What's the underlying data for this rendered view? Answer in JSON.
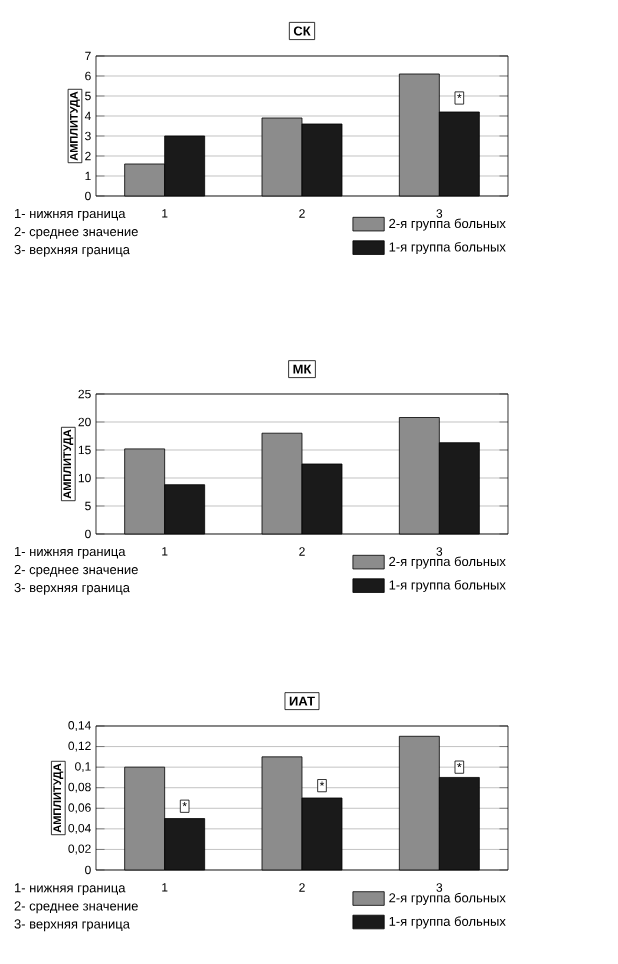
{
  "chart_data": [
    {
      "type": "bar",
      "title": "СК",
      "ylabel": "АМПЛИТУДА",
      "categories": [
        "1",
        "2",
        "3"
      ],
      "series": [
        {
          "name": "2-я группа больных",
          "color": "#8c8c8c",
          "values": [
            1.6,
            3.9,
            6.1
          ]
        },
        {
          "name": "1-я группа больных",
          "color": "#1a1a1a",
          "values": [
            3.0,
            3.6,
            4.2
          ]
        }
      ],
      "ylim": [
        0,
        7
      ],
      "yticks": [
        0,
        1,
        2,
        3,
        4,
        5,
        6,
        7
      ],
      "grid": "y",
      "legend": "bottom right",
      "annotations": [
        {
          "text": "*",
          "x": "3",
          "y": 4.9
        },
        "1- нижняя граница",
        "2- среднее значение",
        "3- верхняя граница"
      ]
    },
    {
      "type": "bar",
      "title": "МК",
      "ylabel": "АМПЛИТУДА",
      "categories": [
        "1",
        "2",
        "3"
      ],
      "series": [
        {
          "name": "2-я группа больных",
          "color": "#8c8c8c",
          "values": [
            15.2,
            18,
            20.8
          ]
        },
        {
          "name": "1-я группа больных",
          "color": "#1a1a1a",
          "values": [
            8.8,
            12.5,
            16.3
          ]
        }
      ],
      "ylim": [
        0,
        25
      ],
      "yticks": [
        0,
        5,
        10,
        15,
        20,
        25
      ],
      "grid": "y",
      "legend": "bottom right",
      "annotations": [
        "1- нижняя граница",
        "2- среднее значение",
        "3- верхняя граница"
      ]
    },
    {
      "type": "bar",
      "title": "ИАТ",
      "ylabel": "АМПЛИТУДА",
      "categories": [
        "1",
        "2",
        "3"
      ],
      "series": [
        {
          "name": "2-я группа больных",
          "color": "#8c8c8c",
          "values": [
            0.1,
            0.11,
            0.13
          ]
        },
        {
          "name": "1-я группа больных",
          "color": "#1a1a1a",
          "values": [
            0.05,
            0.07,
            0.09
          ]
        }
      ],
      "ylim": [
        0,
        0.14
      ],
      "yticks": [
        {
          "value": 0,
          "label": "0"
        },
        {
          "value": 0.02,
          "label": "0,02"
        },
        {
          "value": 0.04,
          "label": "0,04"
        },
        {
          "value": 0.06,
          "label": "0,06"
        },
        {
          "value": 0.08,
          "label": "0,08"
        },
        {
          "value": 0.1,
          "label": "0,1"
        },
        {
          "value": 0.12,
          "label": "0,12"
        },
        {
          "value": 0.14,
          "label": "0,14"
        }
      ],
      "grid": "y",
      "legend": "bottom right",
      "annotations": [
        {
          "text": "*",
          "x": "1",
          "y": 0.062
        },
        {
          "text": "*",
          "x": "2",
          "y": 0.082
        },
        {
          "text": "*",
          "x": "3",
          "y": 0.1
        },
        "1- нижняя граница",
        "2- среднее значение",
        "3- верхняя граница"
      ]
    }
  ]
}
